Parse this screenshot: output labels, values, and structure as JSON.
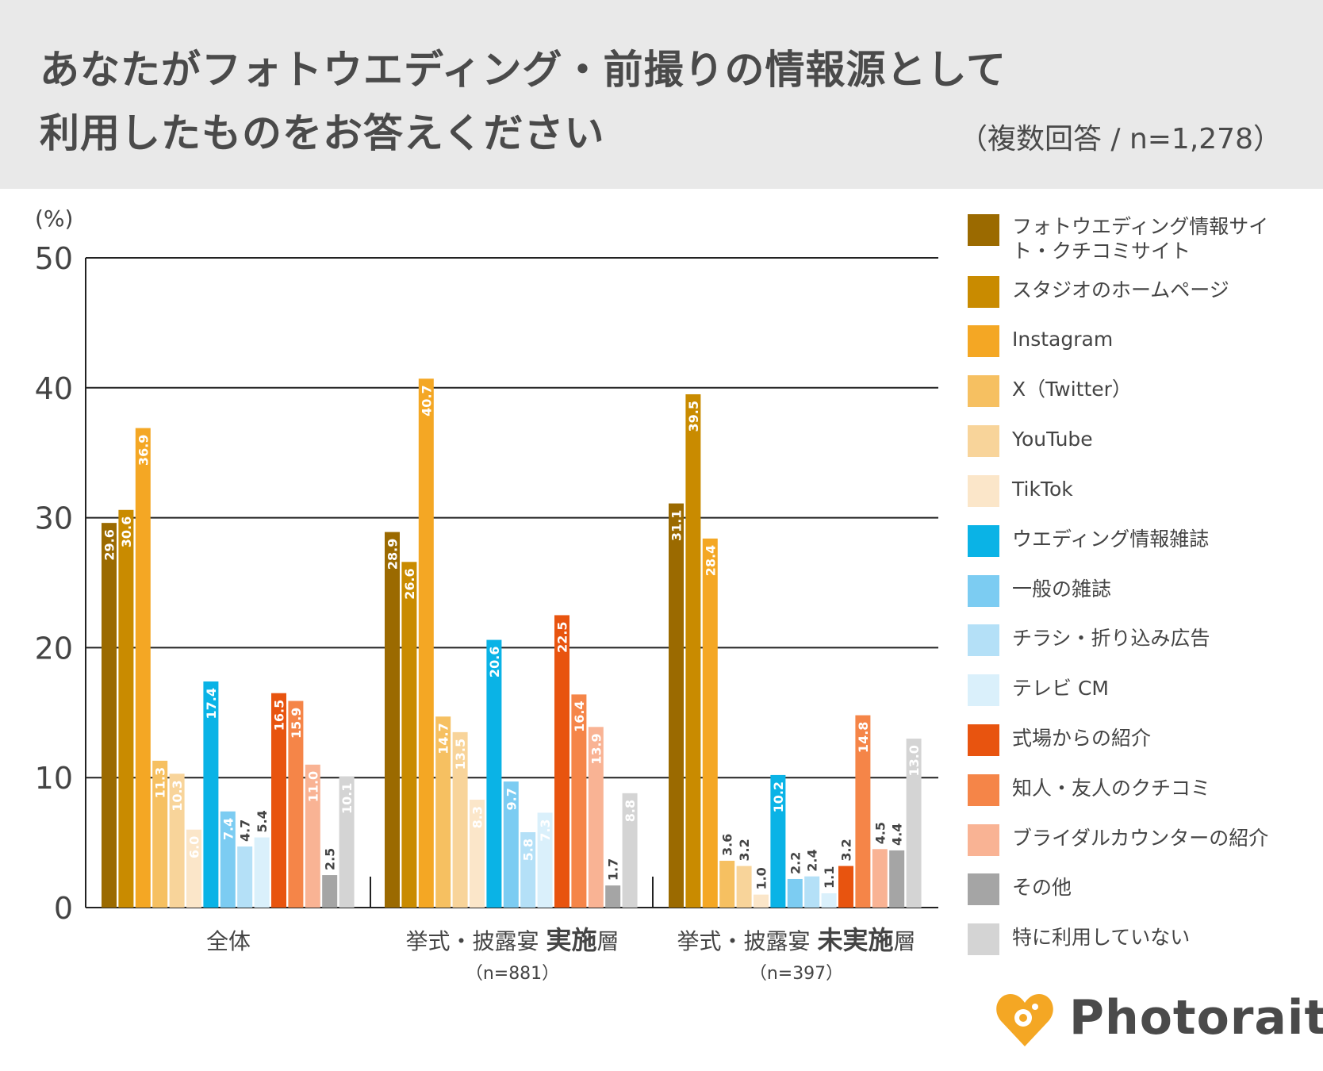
{
  "title": {
    "line1": "あなたがフォトウエディング・前撮りの情報源として",
    "line2": "利用したものをお答えください",
    "subtitle": "（複数回答 / n=1,278）"
  },
  "chart_data": {
    "type": "bar",
    "ylabel": "(%)",
    "ylim": [
      0,
      50
    ],
    "yticks": [
      0,
      10,
      20,
      30,
      40,
      50
    ],
    "grid": true,
    "legend_position": "right",
    "groups": [
      {
        "label": "全体",
        "label_prefix": "",
        "label_bold": "",
        "label_suffix": "",
        "sublabel": ""
      },
      {
        "label": "",
        "label_prefix": "挙式・披露宴 ",
        "label_bold": "実施",
        "label_suffix": "層",
        "sublabel": "（n=881）"
      },
      {
        "label": "",
        "label_prefix": "挙式・披露宴 ",
        "label_bold": "未実施",
        "label_suffix": "層",
        "sublabel": "（n=397）"
      }
    ],
    "series": [
      {
        "name": "フォトウエディング情報サイト・クチコミサイト",
        "color": "#9b6a00",
        "values": [
          29.6,
          28.9,
          31.1
        ]
      },
      {
        "name": "スタジオのホームページ",
        "color": "#c98b00",
        "values": [
          30.6,
          26.6,
          39.5
        ]
      },
      {
        "name": "Instagram",
        "color": "#f4a724",
        "values": [
          36.9,
          40.7,
          28.4
        ]
      },
      {
        "name": "X（Twitter）",
        "color": "#f6c061",
        "values": [
          11.3,
          14.7,
          3.6
        ]
      },
      {
        "name": "YouTube",
        "color": "#f8d49a",
        "values": [
          10.3,
          13.5,
          3.2
        ]
      },
      {
        "name": "TikTok",
        "color": "#fbe6c9",
        "values": [
          6.0,
          8.3,
          1.0
        ]
      },
      {
        "name": "ウエディング情報雑誌",
        "color": "#0ab3e6",
        "values": [
          17.4,
          20.6,
          10.2
        ]
      },
      {
        "name": "一般の雑誌",
        "color": "#7cccf2",
        "values": [
          7.4,
          9.7,
          2.2
        ]
      },
      {
        "name": "チラシ・折り込み広告",
        "color": "#b4e0f7",
        "values": [
          4.7,
          5.8,
          2.4
        ]
      },
      {
        "name": "テレビ CM",
        "color": "#daf0fb",
        "values": [
          5.4,
          7.3,
          1.1
        ]
      },
      {
        "name": "式場からの紹介",
        "color": "#e8540f",
        "values": [
          16.5,
          22.5,
          3.2
        ]
      },
      {
        "name": "知人・友人のクチコミ",
        "color": "#f58548",
        "values": [
          15.9,
          16.4,
          14.8
        ]
      },
      {
        "name": "ブライダルカウンターの紹介",
        "color": "#f9b394",
        "values": [
          11.0,
          13.9,
          4.5
        ]
      },
      {
        "name": "その他",
        "color": "#a5a5a5",
        "values": [
          2.5,
          1.7,
          4.4
        ]
      },
      {
        "name": "特に利用していない",
        "color": "#d4d4d4",
        "values": [
          10.1,
          8.8,
          13.0
        ]
      }
    ]
  },
  "brand": {
    "name": "Photorait",
    "color": "#f4a724",
    "icon": "heart-pin-icon"
  }
}
